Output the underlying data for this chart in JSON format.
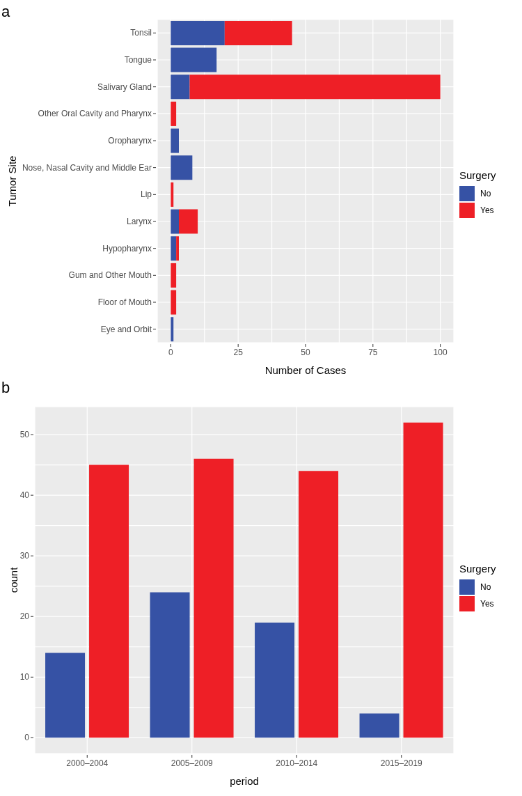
{
  "chart_data": [
    {
      "type": "bar",
      "title": "a",
      "orientation": "horizontal",
      "stacked": true,
      "xlabel": "Number of Cases",
      "ylabel": "Tumor Site",
      "legend_title": "Surgery",
      "legend": "right",
      "grid": true,
      "categories": [
        "Tonsil",
        "Tongue",
        "Salivary Gland",
        "Other Oral Cavity and Pharynx",
        "Oropharynx",
        "Nose, Nasal Cavity and Middle Ear",
        "Lip",
        "Larynx",
        "Hypopharynx",
        "Gum and Other Mouth",
        "Floor of Mouth",
        "Eye and Orbit"
      ],
      "series": [
        {
          "name": "No",
          "color": "#3652a5",
          "values": [
            20,
            17,
            7,
            0,
            3,
            8,
            0,
            3,
            2,
            0,
            0,
            1
          ]
        },
        {
          "name": "Yes",
          "color": "#ee1f26",
          "values": [
            25,
            0,
            93,
            2,
            0,
            0,
            1,
            7,
            1,
            2,
            2,
            0
          ]
        }
      ],
      "xlim": [
        -5,
        105
      ],
      "xticks": [
        0,
        {
          "value": 12.5,
          "label": null
        },
        25,
        {
          "value": 37.5,
          "label": null
        },
        50,
        {
          "value": 62.5,
          "label": null
        },
        75,
        {
          "value": 87.5,
          "label": null
        },
        100
      ]
    },
    {
      "type": "bar",
      "title": "b",
      "xlabel": "period",
      "ylabel": "count",
      "legend_title": "Surgery",
      "legend": "right",
      "grid": true,
      "categories": [
        "2000–2004",
        "2005–2009",
        "2010–2014",
        "2015–2019"
      ],
      "series": [
        {
          "name": "No",
          "color": "#3652a5",
          "values": [
            14,
            24,
            19,
            4
          ]
        },
        {
          "name": "Yes",
          "color": "#ee1f26",
          "values": [
            45,
            46,
            44,
            52
          ]
        }
      ],
      "ylim": [
        -2.6,
        54.6
      ],
      "yticks": [
        0,
        {
          "value": 5,
          "label": null
        },
        10,
        {
          "value": 15,
          "label": null
        },
        20,
        {
          "value": 25,
          "label": null
        },
        30,
        {
          "value": 35,
          "label": null
        },
        40,
        {
          "value": 45,
          "label": null
        },
        50
      ]
    }
  ]
}
